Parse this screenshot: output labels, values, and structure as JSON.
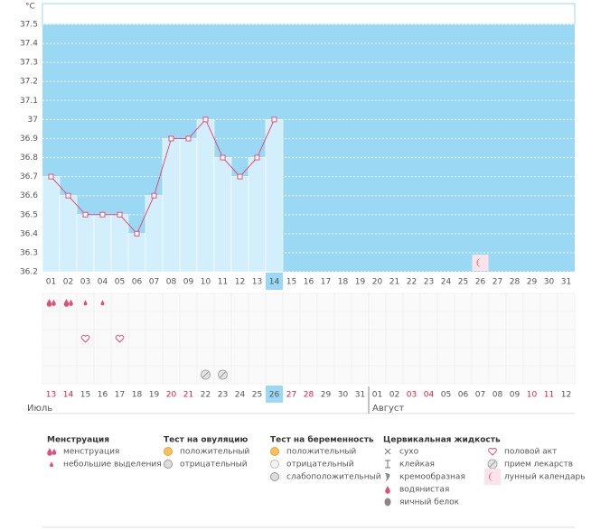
{
  "chart_data": {
    "type": "line",
    "unit": "°C",
    "categories": [
      "01",
      "02",
      "03",
      "04",
      "05",
      "06",
      "07",
      "08",
      "09",
      "10",
      "11",
      "12",
      "13",
      "14",
      "15",
      "16",
      "17",
      "18",
      "19",
      "20",
      "21",
      "22",
      "23",
      "24",
      "25",
      "26",
      "27",
      "28",
      "29",
      "30",
      "31"
    ],
    "values": [
      36.7,
      36.6,
      36.5,
      36.5,
      36.5,
      36.4,
      36.6,
      36.9,
      36.9,
      37.0,
      36.8,
      36.7,
      36.8,
      37.0,
      null,
      null,
      null,
      null,
      null,
      null,
      null,
      null,
      null,
      null,
      null,
      null,
      null,
      null,
      null,
      null,
      null
    ],
    "ylim": [
      36.2,
      37.5
    ],
    "yticks": [
      36.2,
      36.3,
      36.4,
      36.5,
      36.6,
      36.7,
      36.8,
      36.9,
      37,
      37.1,
      37.2,
      37.3,
      37.4,
      37.5
    ],
    "grid": true,
    "color": "#e0507a",
    "background": "#9ad8f3",
    "bar_color": "#d3effc",
    "highlight_index": 13,
    "lunar_days": [
      25
    ]
  },
  "marker_rows": [
    [
      {
        "day": 0,
        "icon": "drop"
      },
      {
        "day": 1,
        "icon": "drop"
      },
      {
        "day": 2,
        "icon": "drop-small"
      },
      {
        "day": 3,
        "icon": "drop-small"
      }
    ],
    [],
    [
      {
        "day": 2,
        "icon": "heart"
      },
      {
        "day": 4,
        "icon": "heart"
      }
    ],
    [],
    [
      {
        "day": 9,
        "icon": "pill"
      },
      {
        "day": 10,
        "icon": "pill"
      }
    ]
  ],
  "calendar": {
    "days": [
      {
        "label": "13",
        "weekend": true
      },
      {
        "label": "14",
        "weekend": true
      },
      {
        "label": "15",
        "weekend": false
      },
      {
        "label": "16",
        "weekend": false
      },
      {
        "label": "17",
        "weekend": false
      },
      {
        "label": "18",
        "weekend": false
      },
      {
        "label": "19",
        "weekend": false
      },
      {
        "label": "20",
        "weekend": true
      },
      {
        "label": "21",
        "weekend": true
      },
      {
        "label": "22",
        "weekend": false
      },
      {
        "label": "23",
        "weekend": false
      },
      {
        "label": "24",
        "weekend": false
      },
      {
        "label": "25",
        "weekend": false
      },
      {
        "label": "26",
        "weekend": false
      },
      {
        "label": "27",
        "weekend": true
      },
      {
        "label": "28",
        "weekend": true
      },
      {
        "label": "29",
        "weekend": false
      },
      {
        "label": "30",
        "weekend": false
      },
      {
        "label": "31",
        "weekend": false
      },
      {
        "label": "01",
        "weekend": false
      },
      {
        "label": "02",
        "weekend": false
      },
      {
        "label": "03",
        "weekend": true
      },
      {
        "label": "04",
        "weekend": true
      },
      {
        "label": "05",
        "weekend": false
      },
      {
        "label": "06",
        "weekend": false
      },
      {
        "label": "07",
        "weekend": false
      },
      {
        "label": "08",
        "weekend": false
      },
      {
        "label": "09",
        "weekend": false
      },
      {
        "label": "10",
        "weekend": true
      },
      {
        "label": "11",
        "weekend": true
      },
      {
        "label": "12",
        "weekend": false
      }
    ],
    "months": [
      {
        "label": "Июль",
        "start": 0
      },
      {
        "label": "Август",
        "start": 19
      }
    ]
  },
  "legend": [
    {
      "title": "Менструация",
      "items": [
        {
          "label": "менструация",
          "icon": "drop"
        },
        {
          "label": "небольшие выделения",
          "icon": "drop-small"
        }
      ]
    },
    {
      "title": "Тест на овуляцию",
      "items": [
        {
          "label": "положительный",
          "icon": "orange"
        },
        {
          "label": "отрицательный",
          "icon": "gray"
        }
      ]
    },
    {
      "title": "Тест на беременность",
      "items": [
        {
          "label": "положительный",
          "icon": "orange"
        },
        {
          "label": "отрицательный",
          "icon": "white"
        },
        {
          "label": "слабоположительный",
          "icon": "gray"
        }
      ]
    },
    {
      "title": "Цервикальная жидкость",
      "items": [
        {
          "label": "сухо",
          "icon": "cross"
        },
        {
          "label": "клейкая",
          "icon": "tee"
        },
        {
          "label": "кремообразная",
          "icon": "cream"
        },
        {
          "label": "водянистая",
          "icon": "water"
        },
        {
          "label": "яичный белок",
          "icon": "egg"
        }
      ]
    },
    {
      "items": [
        {
          "label": "половой акт",
          "icon": "heart"
        },
        {
          "label": "прием лекарств",
          "icon": "pill"
        },
        {
          "label": "лунный календарь",
          "icon": "moon"
        }
      ]
    }
  ]
}
